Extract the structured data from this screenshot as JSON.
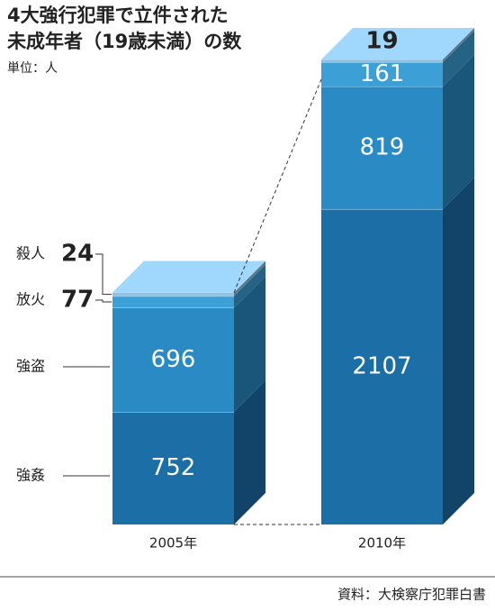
{
  "chart_data": {
    "type": "stacked-bar-3d",
    "title": [
      "4大強行犯罪で立件された",
      "未成年者（19歳未満）の数"
    ],
    "subtitle": "単位：人",
    "source": "資料：大検察庁犯罪白書",
    "categories": [
      "2005年",
      "2010年"
    ],
    "series": [
      {
        "name": "強姦",
        "color": "#1c6ea7",
        "values": [
          752,
          2107
        ]
      },
      {
        "name": "強盗",
        "color": "#2a8bc4",
        "values": [
          696,
          819
        ]
      },
      {
        "name": "放火",
        "color": "#3c9fd6",
        "values": [
          77,
          161
        ]
      },
      {
        "name": "殺人",
        "color": "#8ec0e2",
        "values": [
          24,
          19
        ]
      }
    ]
  }
}
